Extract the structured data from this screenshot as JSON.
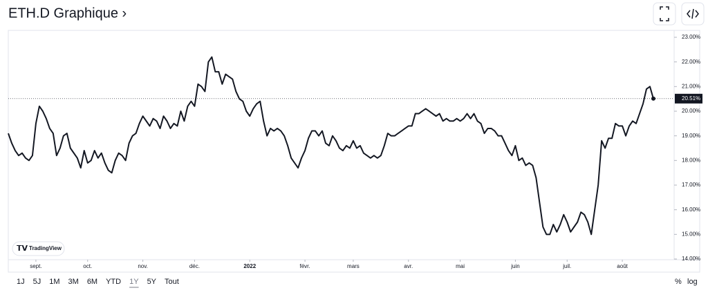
{
  "header": {
    "title": "ETH.D Graphique ›"
  },
  "ranges": [
    "1J",
    "5J",
    "1M",
    "3M",
    "6M",
    "YTD",
    "1Y",
    "5Y",
    "Tout"
  ],
  "selected_range": "1Y",
  "scale_options": [
    "%",
    "log"
  ],
  "logo": "TradingView",
  "chart_data": {
    "type": "line",
    "color": "#131722",
    "values": [
      19.1,
      18.7,
      18.4,
      18.2,
      18.3,
      18.1,
      18.0,
      18.2,
      19.5,
      20.2,
      20.0,
      19.7,
      19.3,
      19.1,
      18.2,
      18.5,
      19.0,
      19.1,
      18.5,
      18.3,
      18.1,
      17.7,
      18.4,
      17.9,
      18.0,
      18.4,
      18.1,
      18.3,
      17.9,
      17.6,
      17.5,
      18.0,
      18.3,
      18.2,
      18.0,
      18.7,
      19.0,
      19.1,
      19.5,
      19.8,
      19.6,
      19.4,
      19.7,
      19.6,
      19.3,
      19.8,
      19.6,
      19.3,
      19.5,
      19.4,
      20.0,
      19.6,
      20.2,
      20.4,
      20.2,
      21.1,
      21.0,
      20.8,
      22.0,
      22.2,
      21.6,
      21.6,
      21.1,
      21.5,
      21.4,
      21.3,
      20.8,
      20.5,
      20.4,
      20.0,
      19.8,
      20.1,
      20.3,
      20.4,
      19.6,
      19.0,
      19.3,
      19.2,
      19.3,
      19.2,
      19.0,
      18.6,
      18.1,
      17.9,
      17.7,
      18.1,
      18.4,
      18.9,
      19.2,
      19.2,
      19.0,
      19.2,
      18.7,
      18.6,
      19.0,
      18.8,
      18.5,
      18.4,
      18.6,
      18.5,
      18.8,
      18.5,
      18.6,
      18.3,
      18.2,
      18.1,
      18.2,
      18.1,
      18.2,
      18.6,
      19.1,
      19.0,
      19.0,
      19.1,
      19.2,
      19.3,
      19.4,
      19.4,
      19.9,
      19.9,
      20.0,
      20.1,
      20.0,
      19.9,
      19.8,
      19.9,
      19.6,
      19.7,
      19.6,
      19.6,
      19.7,
      19.6,
      19.7,
      19.9,
      19.7,
      19.9,
      19.6,
      19.5,
      19.1,
      19.3,
      19.3,
      19.2,
      19.0,
      19.0,
      18.7,
      18.4,
      18.2,
      18.6,
      18.0,
      18.1,
      17.8,
      17.9,
      17.8,
      17.3,
      16.3,
      15.3,
      15.0,
      15.0,
      15.4,
      15.1,
      15.4,
      15.8,
      15.5,
      15.1,
      15.3,
      15.5,
      15.9,
      15.8,
      15.5,
      15.0,
      16.0,
      17.0,
      18.8,
      18.5,
      18.9,
      18.9,
      19.5,
      19.4,
      19.4,
      19.0,
      19.4,
      19.6,
      19.5,
      19.9,
      20.3,
      20.9,
      21.0,
      20.51
    ],
    "xlim": [
      0,
      186
    ],
    "xticks": [
      {
        "value": 8,
        "label": "sept."
      },
      {
        "value": 23,
        "label": "oct."
      },
      {
        "value": 39,
        "label": "nov."
      },
      {
        "value": 54,
        "label": "déc."
      },
      {
        "value": 70,
        "label": "2022"
      },
      {
        "value": 86,
        "label": "févr."
      },
      {
        "value": 100,
        "label": "mars"
      },
      {
        "value": 116,
        "label": "avr."
      },
      {
        "value": 131,
        "label": "mai"
      },
      {
        "value": 147,
        "label": "juin"
      },
      {
        "value": 162,
        "label": "juil."
      },
      {
        "value": 178,
        "label": "août"
      }
    ],
    "ylim": [
      14,
      23.28
    ],
    "yticks": [
      {
        "value": 14,
        "label": "14.00%"
      },
      {
        "value": 15,
        "label": "15.00%"
      },
      {
        "value": 16,
        "label": "16.00%"
      },
      {
        "value": 17,
        "label": "17.00%"
      },
      {
        "value": 18,
        "label": "18.00%"
      },
      {
        "value": 19,
        "label": "19.00%"
      },
      {
        "value": 20,
        "label": "20.00%"
      },
      {
        "value": 21,
        "label": "21.00%"
      },
      {
        "value": 22,
        "label": "22.00%"
      },
      {
        "value": 23,
        "label": "23.00%"
      }
    ],
    "price_line": {
      "value": 20.51,
      "label": "20.51%"
    }
  }
}
